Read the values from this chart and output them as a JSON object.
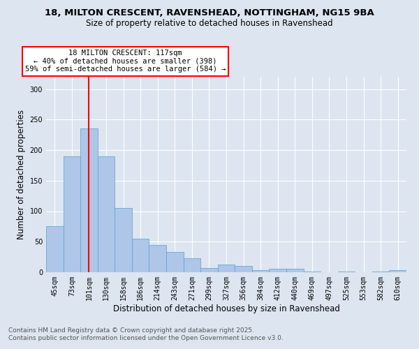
{
  "title_line1": "18, MILTON CRESCENT, RAVENSHEAD, NOTTINGHAM, NG15 9BA",
  "title_line2": "Size of property relative to detached houses in Ravenshead",
  "xlabel": "Distribution of detached houses by size in Ravenshead",
  "ylabel": "Number of detached properties",
  "categories": [
    "45sqm",
    "73sqm",
    "101sqm",
    "130sqm",
    "158sqm",
    "186sqm",
    "214sqm",
    "243sqm",
    "271sqm",
    "299sqm",
    "327sqm",
    "356sqm",
    "384sqm",
    "412sqm",
    "440sqm",
    "469sqm",
    "497sqm",
    "525sqm",
    "553sqm",
    "582sqm",
    "610sqm"
  ],
  "values": [
    75,
    190,
    235,
    190,
    105,
    55,
    45,
    33,
    23,
    7,
    13,
    10,
    4,
    6,
    6,
    1,
    0,
    1,
    0,
    1,
    3
  ],
  "bar_color": "#aec6e8",
  "bar_edge_color": "#5a9fd4",
  "vline_x": 2,
  "vline_color": "red",
  "annotation_text": "18 MILTON CRESCENT: 117sqm\n← 40% of detached houses are smaller (398)\n59% of semi-detached houses are larger (584) →",
  "annotation_box_color": "red",
  "annotation_bg": "white",
  "ylim": [
    0,
    320
  ],
  "yticks": [
    0,
    50,
    100,
    150,
    200,
    250,
    300
  ],
  "footnote1": "Contains HM Land Registry data © Crown copyright and database right 2025.",
  "footnote2": "Contains public sector information licensed under the Open Government Licence v3.0.",
  "bg_color": "#dde5f0",
  "plot_bg_color": "#dde5f0",
  "title_fontsize": 9.5,
  "subtitle_fontsize": 8.5,
  "axis_label_fontsize": 8.5,
  "tick_fontsize": 7,
  "annotation_fontsize": 7.5,
  "footnote_fontsize": 6.5
}
